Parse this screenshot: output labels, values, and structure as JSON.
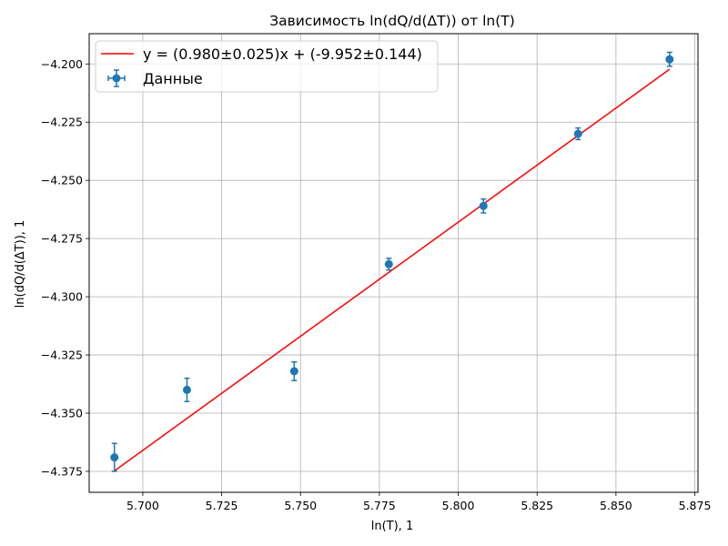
{
  "chart_data": {
    "type": "scatter",
    "title": "Зависимость ln(dQ/d(ΔT)) от ln(T)",
    "xlabel": "ln(T), 1",
    "ylabel": "ln(dQ/d(ΔT)), 1",
    "xlim": [
      5.683,
      5.876
    ],
    "ylim": [
      -4.384,
      -4.187
    ],
    "grid": true,
    "legend_placement": "top-left",
    "x_ticks": [
      5.7,
      5.725,
      5.75,
      5.775,
      5.8,
      5.825,
      5.85,
      5.875
    ],
    "x_tick_labels": [
      "5.700",
      "5.725",
      "5.750",
      "5.775",
      "5.800",
      "5.825",
      "5.850",
      "5.875"
    ],
    "y_ticks": [
      -4.2,
      -4.225,
      -4.25,
      -4.275,
      -4.3,
      -4.325,
      -4.35,
      -4.375
    ],
    "y_tick_labels": [
      "−4.200",
      "−4.225",
      "−4.250",
      "−4.275",
      "−4.300",
      "−4.325",
      "−4.350",
      "−4.375"
    ],
    "series": [
      {
        "name": "Данные",
        "kind": "errorbar",
        "color": "#1f77b4",
        "x": [
          5.691,
          5.714,
          5.748,
          5.778,
          5.808,
          5.838,
          5.867
        ],
        "y": [
          -4.369,
          -4.34,
          -4.332,
          -4.286,
          -4.261,
          -4.23,
          -4.198
        ],
        "yerr": [
          0.006,
          0.005,
          0.004,
          0.0025,
          0.003,
          0.0025,
          0.003
        ],
        "xerr": [
          0.0004,
          0.0004,
          0.0004,
          0.0004,
          0.0004,
          0.0004,
          0.0004
        ]
      },
      {
        "name": "y = (0.980±0.025)x + (-9.952±0.144)",
        "kind": "line",
        "color": "#ff0000",
        "x": [
          5.691,
          5.867
        ],
        "y": [
          -4.3748,
          -4.2023
        ]
      }
    ]
  }
}
